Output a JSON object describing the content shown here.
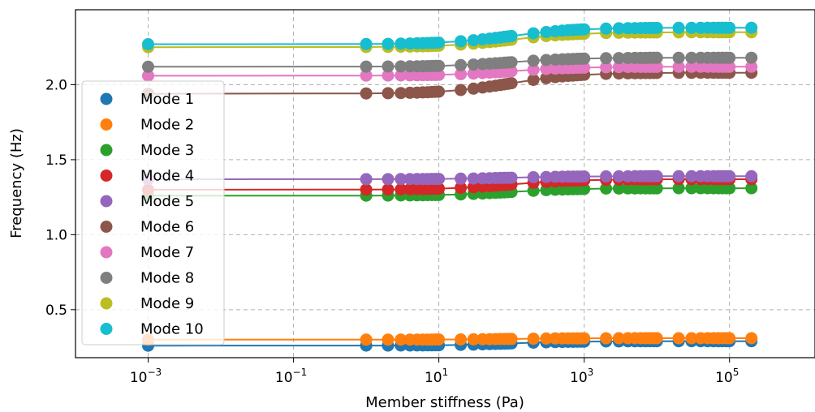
{
  "chart_data": {
    "type": "scatter",
    "title": "",
    "xlabel": "Member stiffness (Pa)",
    "ylabel": "Frequency (Hz)",
    "x_scale": "log",
    "xlim": [
      0.0001,
      1500000
    ],
    "ylim": [
      0.18,
      2.5
    ],
    "x_ticks": [
      {
        "value": 0.001,
        "base": "10",
        "exp": "−3"
      },
      {
        "value": 0.1,
        "base": "10",
        "exp": "−1"
      },
      {
        "value": 10,
        "base": "10",
        "exp": "1"
      },
      {
        "value": 1000,
        "base": "10",
        "exp": "3"
      },
      {
        "value": 100000,
        "base": "10",
        "exp": "5"
      }
    ],
    "y_ticks": [
      "0.5",
      "1.0",
      "1.5",
      "2.0"
    ],
    "grid": true,
    "legend_position": "center-left",
    "x_samples": [
      0.001,
      1,
      2,
      3,
      4,
      5,
      6,
      7,
      8,
      9,
      10,
      20,
      30,
      40,
      50,
      60,
      70,
      80,
      90,
      100,
      200,
      300,
      400,
      500,
      600,
      700,
      800,
      900,
      1000,
      2000,
      3000,
      4000,
      5000,
      6000,
      7000,
      8000,
      9000,
      10000,
      20000,
      30000,
      40000,
      50000,
      60000,
      70000,
      80000,
      90000,
      100000,
      200000
    ],
    "series": [
      {
        "name": "Mode 1",
        "color": "#1f77b4",
        "low": 0.26,
        "high": 0.29
      },
      {
        "name": "Mode 2",
        "color": "#ff7f0e",
        "low": 0.3,
        "high": 0.31
      },
      {
        "name": "Mode 3",
        "color": "#2ca02c",
        "low": 1.26,
        "high": 1.31
      },
      {
        "name": "Mode 4",
        "color": "#d62728",
        "low": 1.3,
        "high": 1.37
      },
      {
        "name": "Mode 5",
        "color": "#9467bd",
        "low": 1.37,
        "high": 1.39
      },
      {
        "name": "Mode 6",
        "color": "#8c564b",
        "low": 1.94,
        "high": 2.08
      },
      {
        "name": "Mode 7",
        "color": "#e377c2",
        "low": 2.06,
        "high": 2.12
      },
      {
        "name": "Mode 8",
        "color": "#7f7f7f",
        "low": 2.12,
        "high": 2.18
      },
      {
        "name": "Mode 9",
        "color": "#bcbd22",
        "low": 2.25,
        "high": 2.35
      },
      {
        "name": "Mode 10",
        "color": "#17becf",
        "low": 2.27,
        "high": 2.38
      }
    ]
  }
}
